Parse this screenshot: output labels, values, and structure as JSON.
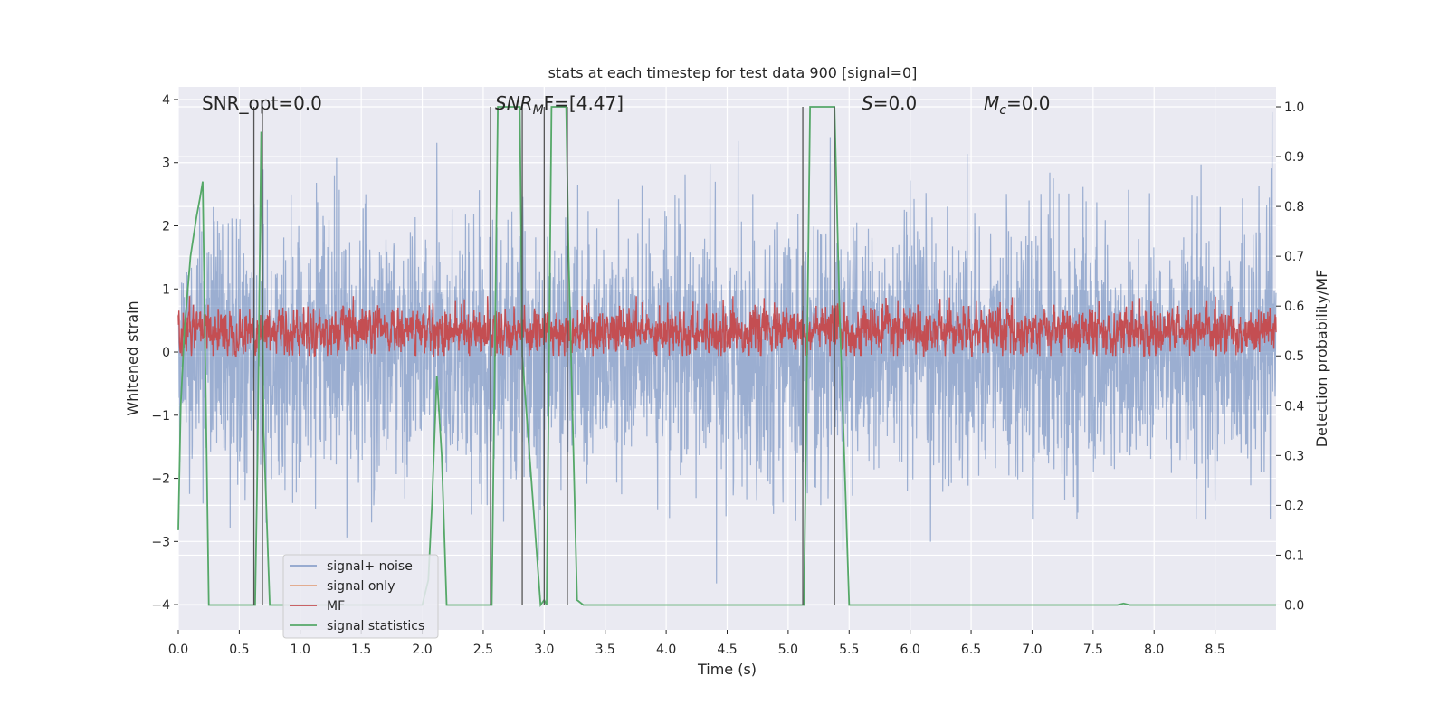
{
  "chart_data": {
    "type": "line",
    "title": "stats at each timestep for test data 900 [signal=0]",
    "xlabel": "Time (s)",
    "ylabel": "Whitened strain",
    "ylabel_right": "Detection probability/MF",
    "xlim": [
      0.0,
      9.0
    ],
    "ylim": [
      -4.4,
      4.2
    ],
    "ylim_right": [
      -0.05,
      1.04
    ],
    "xticks": [
      "0.0",
      "0.5",
      "1.0",
      "1.5",
      "2.0",
      "2.5",
      "3.0",
      "3.5",
      "4.0",
      "4.5",
      "5.0",
      "5.5",
      "6.0",
      "6.5",
      "7.0",
      "7.5",
      "8.0",
      "8.5"
    ],
    "yticks": [
      "−4",
      "−3",
      "−2",
      "−1",
      "0",
      "1",
      "2",
      "3",
      "4"
    ],
    "yticks_right": [
      "0.0",
      "0.1",
      "0.2",
      "0.3",
      "0.4",
      "0.5",
      "0.6",
      "0.7",
      "0.8",
      "0.9",
      "1.0"
    ],
    "annotations": {
      "snr_opt": "SNR_opt=0.0",
      "snr_mf_main": "SNR",
      "snr_mf_sub": "M",
      "snr_mf_rest": "F=[4.47]",
      "s_label": "S",
      "s_value": "=0.0",
      "mc_label": "M",
      "mc_sub": "c",
      "mc_value": "=0.0"
    },
    "grid": true,
    "legend_position": "lower-left",
    "colors": {
      "noise": "#4c72b0",
      "signal": "#dd8452",
      "mf": "#c44e52",
      "stats": "#55a868",
      "background": "#eaeaf2",
      "vline": "#555555"
    },
    "series": [
      {
        "name": "signal+ noise",
        "description_key": "noise",
        "amplitude_std": 1.0,
        "peak_range": [
          -4.0,
          3.8
        ]
      },
      {
        "name": "signal only",
        "description_key": "signal",
        "values": []
      },
      {
        "name": "MF",
        "description_key": "mf",
        "axis": "right",
        "range": [
          0.5,
          0.62
        ]
      },
      {
        "name": "signal statistics",
        "description_key": "stats",
        "axis": "right",
        "x": [
          0.0,
          0.02,
          0.05,
          0.1,
          0.15,
          0.18,
          0.2,
          0.25,
          0.63,
          0.65,
          0.68,
          0.7,
          0.75,
          0.8,
          2.0,
          2.05,
          2.08,
          2.12,
          2.16,
          2.2,
          2.57,
          2.62,
          2.8,
          2.82,
          2.97,
          3.0,
          3.02,
          3.06,
          3.18,
          3.2,
          3.27,
          3.32,
          5.13,
          5.18,
          5.38,
          5.42,
          5.5,
          7.7,
          7.75,
          7.8,
          9.0
        ],
        "y": [
          0.15,
          0.4,
          0.55,
          0.7,
          0.78,
          0.82,
          0.85,
          0.0,
          0.0,
          0.3,
          0.95,
          0.35,
          0.0,
          0.0,
          0.0,
          0.05,
          0.2,
          0.46,
          0.3,
          0.0,
          0.0,
          1.0,
          1.0,
          0.5,
          0.0,
          0.01,
          0.0,
          1.0,
          1.0,
          0.7,
          0.01,
          0.0,
          0.0,
          1.0,
          1.0,
          0.6,
          0.0,
          0.0,
          0.003,
          0.0,
          0.0
        ]
      }
    ],
    "vertical_lines_x": [
      0.62,
      0.69,
      2.56,
      2.82,
      3.0,
      3.19,
      5.12,
      5.38
    ]
  }
}
